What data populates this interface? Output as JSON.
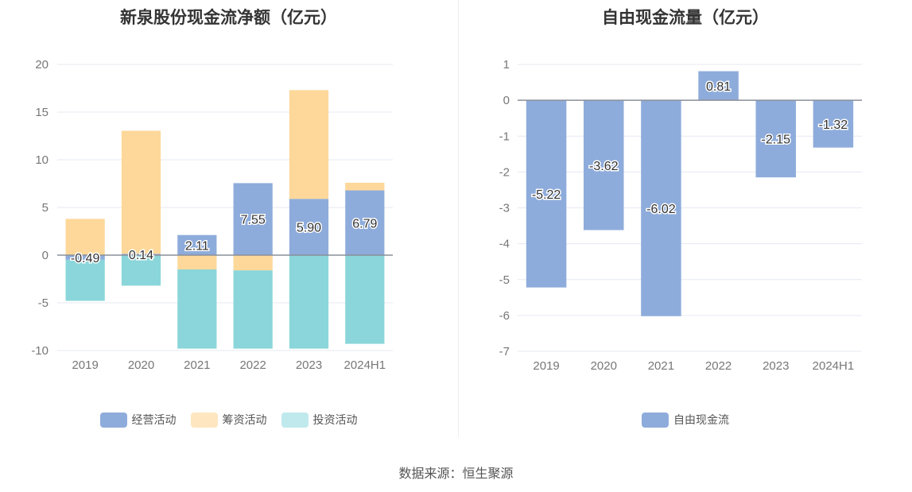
{
  "source_text": "数据来源：恒生聚源",
  "chart_data": [
    {
      "type": "bar",
      "stacked": true,
      "title": "新泉股份现金流净额（亿元）",
      "categories": [
        "2019",
        "2020",
        "2021",
        "2022",
        "2023",
        "2024H1"
      ],
      "ylim": [
        -10,
        20
      ],
      "yticks": [
        -10,
        -5,
        0,
        5,
        10,
        15,
        20
      ],
      "grid": true,
      "legend_position": "bottom",
      "series": [
        {
          "name": "经营活动",
          "color": "#8eacdb",
          "values": [
            -0.49,
            0.14,
            2.11,
            7.55,
            5.9,
            6.79
          ]
        },
        {
          "name": "筹资活动",
          "color": "#fdd89a",
          "values": [
            3.8,
            12.9,
            -1.5,
            -1.6,
            11.4,
            0.8
          ]
        },
        {
          "name": "投资活动",
          "color": "#8ad6da",
          "values": [
            -4.3,
            -3.2,
            -8.3,
            -8.2,
            -9.8,
            -9.3
          ]
        }
      ],
      "data_labels": [
        "-0.49",
        "0.14",
        "2.11",
        "7.55",
        "5.90",
        "6.79"
      ]
    },
    {
      "type": "bar",
      "title": "自由现金流量（亿元）",
      "categories": [
        "2019",
        "2020",
        "2021",
        "2022",
        "2023",
        "2024H1"
      ],
      "ylim": [
        -7,
        1
      ],
      "yticks": [
        -7,
        -6,
        -5,
        -4,
        -3,
        -2,
        -1,
        0,
        1
      ],
      "grid": true,
      "legend_position": "bottom",
      "series": [
        {
          "name": "自由现金流",
          "color": "#8eacdb",
          "values": [
            -5.22,
            -3.62,
            -6.02,
            0.81,
            -2.15,
            -1.32
          ]
        }
      ],
      "data_labels": [
        "-5.22",
        "-3.62",
        "-6.02",
        "0.81",
        "-2.15",
        "-1.32"
      ]
    }
  ]
}
